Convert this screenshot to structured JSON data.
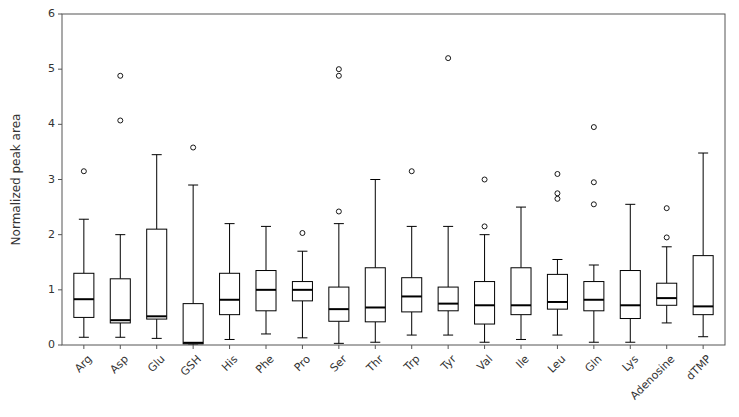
{
  "chart_data": {
    "type": "box",
    "categories": [
      "Arg",
      "Asp",
      "Glu",
      "GSH",
      "His",
      "Phe",
      "Pro",
      "Ser",
      "Thr",
      "Trp",
      "Tyr",
      "Val",
      "Ile",
      "Leu",
      "Gln",
      "Lys",
      "Adenosine",
      "dTMP"
    ],
    "boxes": [
      {
        "med": 0.83,
        "q1": 0.5,
        "q3": 1.3,
        "whislo": 0.14,
        "whishi": 2.28,
        "fliers": [
          3.15
        ]
      },
      {
        "med": 0.45,
        "q1": 0.4,
        "q3": 1.2,
        "whislo": 0.14,
        "whishi": 2.0,
        "fliers": [
          4.07,
          4.88
        ]
      },
      {
        "med": 0.52,
        "q1": 0.47,
        "q3": 2.1,
        "whislo": 0.12,
        "whishi": 3.45,
        "fliers": []
      },
      {
        "med": 0.04,
        "q1": 0.02,
        "q3": 0.75,
        "whislo": 0.0,
        "whishi": 2.9,
        "fliers": [
          3.58
        ]
      },
      {
        "med": 0.82,
        "q1": 0.55,
        "q3": 1.3,
        "whislo": 0.1,
        "whishi": 2.2,
        "fliers": []
      },
      {
        "med": 1.0,
        "q1": 0.62,
        "q3": 1.35,
        "whislo": 0.2,
        "whishi": 2.15,
        "fliers": []
      },
      {
        "med": 1.0,
        "q1": 0.8,
        "q3": 1.15,
        "whislo": 0.13,
        "whishi": 1.7,
        "fliers": [
          2.03
        ]
      },
      {
        "med": 0.65,
        "q1": 0.43,
        "q3": 1.05,
        "whislo": 0.03,
        "whishi": 2.2,
        "fliers": [
          2.42,
          4.88,
          5.0
        ]
      },
      {
        "med": 0.68,
        "q1": 0.42,
        "q3": 1.4,
        "whislo": 0.05,
        "whishi": 3.0,
        "fliers": []
      },
      {
        "med": 0.88,
        "q1": 0.6,
        "q3": 1.22,
        "whislo": 0.18,
        "whishi": 2.15,
        "fliers": [
          3.15
        ]
      },
      {
        "med": 0.75,
        "q1": 0.62,
        "q3": 1.05,
        "whislo": 0.18,
        "whishi": 2.15,
        "fliers": [
          5.2
        ]
      },
      {
        "med": 0.72,
        "q1": 0.38,
        "q3": 1.15,
        "whislo": 0.05,
        "whishi": 2.0,
        "fliers": [
          2.15,
          3.0
        ]
      },
      {
        "med": 0.72,
        "q1": 0.55,
        "q3": 1.4,
        "whislo": 0.1,
        "whishi": 2.5,
        "fliers": []
      },
      {
        "med": 0.78,
        "q1": 0.65,
        "q3": 1.28,
        "whislo": 0.18,
        "whishi": 1.55,
        "fliers": [
          2.65,
          2.75,
          3.1
        ]
      },
      {
        "med": 0.82,
        "q1": 0.62,
        "q3": 1.15,
        "whislo": 0.05,
        "whishi": 1.45,
        "fliers": [
          2.55,
          2.95,
          3.95
        ]
      },
      {
        "med": 0.72,
        "q1": 0.48,
        "q3": 1.35,
        "whislo": 0.05,
        "whishi": 2.55,
        "fliers": []
      },
      {
        "med": 0.85,
        "q1": 0.72,
        "q3": 1.12,
        "whislo": 0.4,
        "whishi": 1.78,
        "fliers": [
          1.95,
          2.48
        ]
      },
      {
        "med": 0.7,
        "q1": 0.55,
        "q3": 1.62,
        "whislo": 0.15,
        "whishi": 3.48,
        "fliers": []
      }
    ],
    "ylabel": "Normalized peak area",
    "ylim": [
      0.0,
      6.0
    ],
    "yticks": [
      0,
      1,
      2,
      3,
      4,
      5,
      6
    ],
    "color": "#000000",
    "grid": false
  }
}
